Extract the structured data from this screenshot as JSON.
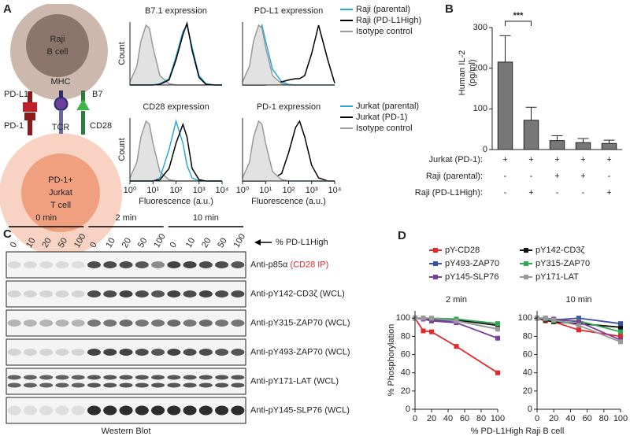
{
  "panel_labels": [
    "A",
    "B",
    "C",
    "D"
  ],
  "diagram": {
    "raji": [
      "Raji",
      "B cell"
    ],
    "jurkat": [
      "PD-1+",
      "Jurkat",
      "T cell"
    ],
    "mhc": "MHC",
    "pdl1": "PD-L1",
    "b7": "B7",
    "pd1": "PD-1",
    "tcr": "TCR",
    "cd28": "CD28"
  },
  "chart_data": [
    {
      "type": "line",
      "title": "B7.1 expression",
      "ylabel": "Count",
      "xscale": "log",
      "xlim": [
        1,
        10000
      ],
      "ylim": [
        0,
        100
      ],
      "x": [
        1,
        2,
        3,
        5,
        7,
        10,
        20,
        50,
        100,
        200,
        300,
        500,
        1000,
        2000,
        5000,
        10000
      ],
      "series": [
        {
          "color": "#999999",
          "fill": "#e2e2e2",
          "values": [
            5,
            30,
            70,
            95,
            90,
            60,
            15,
            2,
            0,
            0,
            0,
            0,
            0,
            0,
            0,
            0
          ]
        },
        {
          "color": "#29a9d6",
          "values": [
            0,
            0,
            0,
            0,
            0,
            0,
            2,
            10,
            45,
            85,
            95,
            60,
            15,
            2,
            0,
            0
          ]
        },
        {
          "color": "#000000",
          "values": [
            0,
            0,
            0,
            0,
            0,
            0,
            1,
            8,
            40,
            80,
            98,
            55,
            12,
            1,
            0,
            0
          ]
        }
      ]
    },
    {
      "type": "line",
      "title": "PD-L1 expression",
      "xscale": "log",
      "xlim": [
        1,
        10000
      ],
      "ylim": [
        0,
        100
      ],
      "legend": true,
      "x": [
        1,
        2,
        3,
        5,
        7,
        10,
        20,
        50,
        100,
        200,
        300,
        500,
        1000,
        2000,
        5000,
        10000
      ],
      "series": [
        {
          "name": "Raji (parental)",
          "color": "#29a9d6",
          "values": [
            2,
            10,
            40,
            85,
            95,
            70,
            25,
            5,
            1,
            0,
            0,
            0,
            0,
            0,
            0,
            0
          ]
        },
        {
          "name": "Raji (PD-L1High)",
          "color": "#000000",
          "values": [
            0,
            0,
            0,
            0,
            0,
            0,
            2,
            5,
            8,
            10,
            10,
            15,
            50,
            95,
            40,
            3
          ]
        },
        {
          "name": "Isotype control",
          "color": "#999999",
          "fill": "#e2e2e2",
          "values": [
            5,
            30,
            70,
            95,
            90,
            60,
            15,
            2,
            0,
            0,
            0,
            0,
            0,
            0,
            0,
            0
          ]
        }
      ]
    },
    {
      "type": "line",
      "title": "CD28 expression",
      "ylabel": "Count",
      "xlabel": "Fluorescence (a.u.)",
      "xscale": "log",
      "xlim": [
        1,
        10000
      ],
      "ylim": [
        0,
        100
      ],
      "xticks": [
        {
          "value": 1,
          "label": "10⁰"
        },
        {
          "value": 10,
          "label": "10¹"
        },
        {
          "value": 100,
          "label": "10²"
        },
        {
          "value": 1000,
          "label": "10³"
        },
        {
          "value": 10000,
          "label": "10⁴"
        }
      ],
      "x": [
        1,
        2,
        3,
        5,
        7,
        10,
        20,
        50,
        100,
        200,
        300,
        500,
        1000,
        2000,
        5000,
        10000
      ],
      "series": [
        {
          "color": "#999999",
          "fill": "#e2e2e2",
          "values": [
            5,
            30,
            70,
            95,
            90,
            60,
            15,
            2,
            0,
            0,
            0,
            0,
            0,
            0,
            0,
            0
          ]
        },
        {
          "color": "#29a9d6",
          "values": [
            0,
            0,
            0,
            0,
            0,
            0,
            5,
            50,
            95,
            60,
            25,
            5,
            0,
            0,
            0,
            0
          ]
        },
        {
          "color": "#000000",
          "values": [
            0,
            0,
            0,
            0,
            0,
            0,
            2,
            20,
            60,
            90,
            70,
            20,
            2,
            0,
            0,
            0
          ]
        }
      ]
    },
    {
      "type": "line",
      "title": "PD-1 expression",
      "xlabel": "Fluorescence (a.u.)",
      "xscale": "log",
      "xlim": [
        1,
        10000
      ],
      "ylim": [
        0,
        100
      ],
      "legend": true,
      "xticks": [
        {
          "value": 1,
          "label": "10⁰"
        },
        {
          "value": 10,
          "label": "10¹"
        },
        {
          "value": 100,
          "label": "10²"
        },
        {
          "value": 1000,
          "label": "10³"
        },
        {
          "value": 10000,
          "label": "10⁴"
        }
      ],
      "x": [
        1,
        2,
        3,
        5,
        7,
        10,
        20,
        50,
        100,
        200,
        300,
        500,
        1000,
        2000,
        5000,
        10000
      ],
      "series": [
        {
          "name": "Jurkat (parental)",
          "color": "#29a9d6",
          "values": [
            3,
            25,
            65,
            92,
            88,
            55,
            12,
            2,
            0,
            0,
            0,
            0,
            0,
            0,
            0,
            0
          ]
        },
        {
          "name": "Jurkat (PD-1)",
          "color": "#000000",
          "values": [
            0,
            0,
            0,
            0,
            0,
            0,
            3,
            12,
            45,
            85,
            95,
            70,
            25,
            5,
            0,
            0
          ]
        },
        {
          "name": "Isotype control",
          "color": "#999999",
          "fill": "#e2e2e2",
          "values": [
            5,
            30,
            70,
            95,
            90,
            60,
            15,
            2,
            0,
            0,
            0,
            0,
            0,
            0,
            0,
            0
          ]
        }
      ]
    },
    {
      "type": "bar",
      "ylabel": [
        "Human IL-2",
        "(pg/ml)"
      ],
      "ylim": [
        0,
        300
      ],
      "yticks": [
        0,
        100,
        200,
        300
      ],
      "color": "#777777",
      "values": [
        215,
        72,
        22,
        17,
        15
      ],
      "errors": [
        65,
        32,
        12,
        10,
        8
      ],
      "annotation": "***",
      "condition_rows": [
        {
          "label": "Jurkat (PD-1):",
          "signs": [
            "+",
            "+",
            "+",
            "+",
            "+"
          ]
        },
        {
          "label": "Raji (parental):",
          "signs": [
            "-",
            "-",
            "+",
            "+",
            "-"
          ]
        },
        {
          "label": "Raji (PD-L1High):",
          "signs": [
            "-",
            "+",
            "-",
            "-",
            "+"
          ]
        }
      ]
    },
    {
      "type": "line",
      "title": "2 min",
      "ylabel": "% Phosphorylation",
      "xlabel": "% PD-L1High Raji B cell",
      "markers": true,
      "legend": true,
      "xlim": [
        0,
        100
      ],
      "ylim": [
        0,
        108
      ],
      "xticks": [
        0,
        20,
        40,
        60,
        80,
        100
      ],
      "yticks": [
        0,
        20,
        40,
        60,
        80,
        100
      ],
      "x": [
        0,
        10,
        20,
        50,
        100
      ],
      "series": [
        {
          "name": "pY-CD28",
          "color": "#e8262a",
          "values": [
            100,
            86,
            85,
            69,
            40
          ]
        },
        {
          "name": "pY142-CD3ζ",
          "color": "#111111",
          "values": [
            100,
            100,
            99,
            98,
            92
          ]
        },
        {
          "name": "pY493-ZAP70",
          "color": "#3a4fa3",
          "values": [
            100,
            99,
            97,
            97,
            88
          ]
        },
        {
          "name": "pY315-ZAP70",
          "color": "#2fa84f",
          "values": [
            100,
            100,
            100,
            99,
            94
          ]
        },
        {
          "name": "pY145-SLP76",
          "color": "#7b3fa0",
          "values": [
            100,
            99,
            97,
            95,
            78
          ]
        },
        {
          "name": "pY171-LAT",
          "color": "#9a9a9a",
          "values": [
            100,
            100,
            100,
            97,
            88
          ]
        }
      ]
    },
    {
      "type": "line",
      "title": "10 min",
      "markers": true,
      "xlim": [
        0,
        100
      ],
      "ylim": [
        0,
        108
      ],
      "xticks": [
        0,
        20,
        40,
        60,
        80,
        100
      ],
      "yticks": [
        0,
        20,
        40,
        60,
        80,
        100
      ],
      "x": [
        0,
        10,
        20,
        50,
        100
      ],
      "series": [
        {
          "color": "#e8262a",
          "values": [
            100,
            97,
            96,
            87,
            80
          ]
        },
        {
          "color": "#111111",
          "values": [
            100,
            98,
            96,
            94,
            90
          ]
        },
        {
          "color": "#3a4fa3",
          "values": [
            100,
            100,
            98,
            100,
            94
          ]
        },
        {
          "color": "#2fa84f",
          "values": [
            100,
            99,
            97,
            97,
            85
          ]
        },
        {
          "color": "#7b3fa0",
          "values": [
            100,
            100,
            99,
            96,
            76
          ]
        },
        {
          "color": "#9a9a9a",
          "values": [
            100,
            100,
            98,
            92,
            74
          ]
        }
      ]
    }
  ],
  "blot": {
    "groups": [
      "0 min",
      "2 min",
      "10 min"
    ],
    "lanes": [
      "0",
      "10",
      "20",
      "50",
      "100",
      "0",
      "10",
      "20",
      "50",
      "100",
      "0",
      "10",
      "20",
      "50",
      "100"
    ],
    "lane_axis": "% PD-L1High",
    "rows": [
      {
        "antibody": "Anti-p85α",
        "source": "(CD28 IP)",
        "source_color": "#e8262a"
      },
      {
        "antibody": "Anti-pY142-CD3ζ",
        "source": "(WCL)"
      },
      {
        "antibody": "Anti-pY315-ZAP70",
        "source": "(WCL)"
      },
      {
        "antibody": "Anti-pY493-ZAP70",
        "source": "(WCL)"
      },
      {
        "antibody": "Anti-pY171-LAT",
        "source": "(WCL)"
      },
      {
        "antibody": "Anti-pY145-SLP76",
        "source": "(WCL)"
      }
    ],
    "caption": "Western Blot"
  }
}
